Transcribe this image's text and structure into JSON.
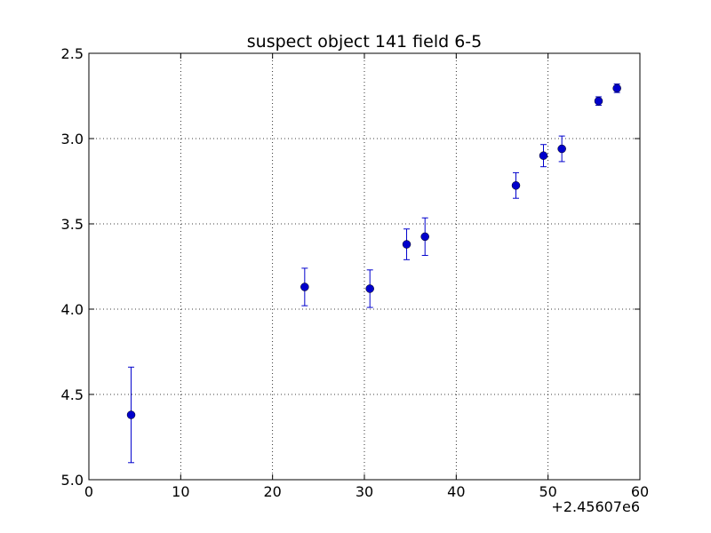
{
  "chart_data": {
    "type": "scatter",
    "title": "suspect object 141 field 6-5",
    "xlabel": "",
    "ylabel": "",
    "x_offset_label": "+2.45607e6",
    "xlim": [
      0,
      60
    ],
    "ylim": [
      5.0,
      2.5
    ],
    "y_inverted": true,
    "xticks": [
      0,
      10,
      20,
      30,
      40,
      50,
      60
    ],
    "yticks": [
      2.5,
      3.0,
      3.5,
      4.0,
      4.5,
      5.0
    ],
    "ytick_labels": [
      "2.5",
      "3.0",
      "3.5",
      "4.0",
      "4.5",
      "5.0"
    ],
    "grid": true,
    "marker_color": "#0000cc",
    "series": [
      {
        "points": [
          {
            "x": 4.6,
            "y": 4.62,
            "err": 0.28
          },
          {
            "x": 23.5,
            "y": 3.87,
            "err": 0.11
          },
          {
            "x": 30.6,
            "y": 3.88,
            "err": 0.11
          },
          {
            "x": 34.6,
            "y": 3.62,
            "err": 0.09
          },
          {
            "x": 36.6,
            "y": 3.575,
            "err": 0.11
          },
          {
            "x": 46.5,
            "y": 3.275,
            "err": 0.075
          },
          {
            "x": 49.5,
            "y": 3.1,
            "err": 0.065
          },
          {
            "x": 51.5,
            "y": 3.06,
            "err": 0.075
          },
          {
            "x": 55.5,
            "y": 2.78,
            "err": 0.025
          },
          {
            "x": 57.5,
            "y": 2.705,
            "err": 0.025
          }
        ]
      }
    ]
  }
}
